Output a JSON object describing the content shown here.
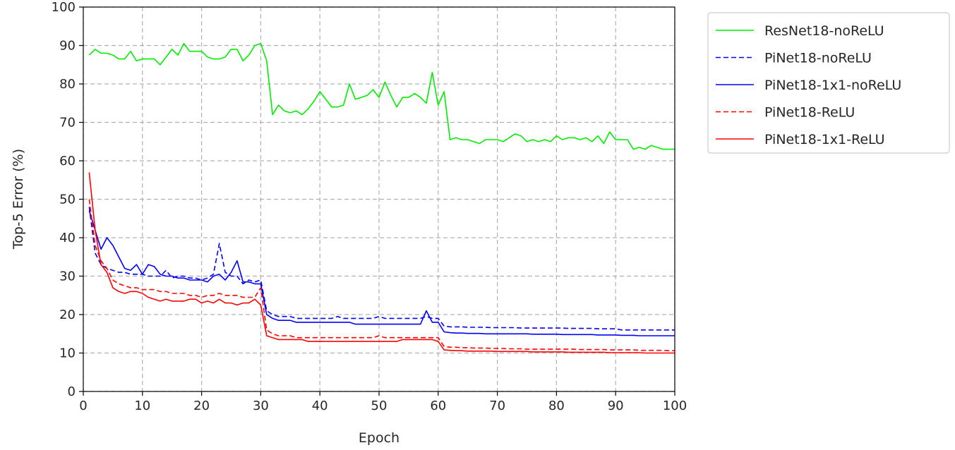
{
  "chart_data": {
    "type": "line",
    "title": "",
    "xlabel": "Epoch",
    "ylabel": "Top-5 Error (%)",
    "xlim": [
      0,
      100
    ],
    "ylim": [
      0,
      100
    ],
    "xticks": [
      "0",
      "10",
      "20",
      "30",
      "40",
      "50",
      "60",
      "70",
      "80",
      "90",
      "100"
    ],
    "yticks": [
      "0",
      "10",
      "20",
      "30",
      "40",
      "50",
      "60",
      "70",
      "80",
      "90",
      "100"
    ],
    "grid": true,
    "legend_position": "outside-top-right",
    "x": [
      1,
      2,
      3,
      4,
      5,
      6,
      7,
      8,
      9,
      10,
      11,
      12,
      13,
      14,
      15,
      16,
      17,
      18,
      19,
      20,
      21,
      22,
      23,
      24,
      25,
      26,
      27,
      28,
      29,
      30,
      31,
      32,
      33,
      34,
      35,
      36,
      37,
      38,
      39,
      40,
      41,
      42,
      43,
      44,
      45,
      46,
      47,
      48,
      49,
      50,
      51,
      52,
      53,
      54,
      55,
      56,
      57,
      58,
      59,
      60,
      61,
      62,
      63,
      64,
      65,
      66,
      67,
      68,
      69,
      70,
      71,
      72,
      73,
      74,
      75,
      76,
      77,
      78,
      79,
      80,
      81,
      82,
      83,
      84,
      85,
      86,
      87,
      88,
      89,
      90,
      91,
      92,
      93,
      94,
      95,
      96,
      97,
      98,
      99,
      100
    ],
    "series": [
      {
        "name": "ResNet18-noReLU",
        "color": "#00ee00",
        "style": "solid",
        "values": [
          87.5,
          89,
          88,
          88,
          87.5,
          86.5,
          86.5,
          88.5,
          86,
          86.5,
          86.5,
          86.5,
          85,
          87,
          89,
          87.5,
          90.5,
          88.5,
          88.5,
          88.5,
          87,
          86.5,
          86.5,
          87,
          89,
          89,
          86,
          87.5,
          90,
          90.5,
          86,
          72,
          74.5,
          73,
          72.5,
          73,
          72,
          73.5,
          75.5,
          78,
          76,
          74,
          74,
          74.5,
          80,
          76,
          76.5,
          77,
          78.5,
          76.5,
          80.5,
          77,
          74,
          76.5,
          76.5,
          77.5,
          76.5,
          75,
          83,
          74.5,
          78,
          65.5,
          66,
          65.5,
          65.5,
          65,
          64.5,
          65.5,
          65.5,
          65.5,
          65,
          66,
          67,
          66.5,
          65,
          65.5,
          65,
          65.5,
          65,
          66.5,
          65.5,
          66,
          66,
          65.5,
          66,
          65,
          66.5,
          64.5,
          67.5,
          65.5,
          65.5,
          65.5,
          63,
          63.5,
          63,
          64,
          63.5,
          63,
          63,
          63
        ]
      },
      {
        "name": "PiNet18-noReLU",
        "color": "#0000ff",
        "style": "dashed",
        "values": [
          48,
          36,
          33,
          32,
          31.5,
          31,
          31,
          30.5,
          30.5,
          30.5,
          30,
          30,
          30,
          31.5,
          29.5,
          30,
          30,
          29.5,
          29.5,
          29,
          29.5,
          30.5,
          38.5,
          31,
          30,
          30,
          28,
          29,
          28.5,
          29,
          21,
          20,
          19.5,
          19.5,
          19.5,
          19,
          19,
          19,
          19,
          19,
          19,
          19,
          19.5,
          19,
          19,
          19,
          19,
          19,
          19,
          19.5,
          19,
          19,
          19,
          19,
          19,
          19,
          19,
          19.5,
          19,
          19,
          17,
          16.8,
          16.8,
          16.8,
          16.7,
          16.7,
          16.7,
          16.7,
          16.6,
          16.6,
          16.6,
          16.6,
          16.6,
          16.5,
          16.5,
          16.5,
          16.5,
          16.5,
          16.5,
          16.5,
          16.5,
          16.4,
          16.4,
          16.4,
          16.4,
          16.4,
          16.3,
          16.3,
          16.3,
          16.3,
          16,
          16,
          16,
          16,
          16,
          16,
          16,
          16,
          16,
          16
        ]
      },
      {
        "name": "PiNet18-1x1-noReLU",
        "color": "#0000ff",
        "style": "solid",
        "values": [
          47,
          42,
          37,
          40,
          38,
          35,
          32,
          31.5,
          33,
          30.5,
          33,
          32.5,
          30.5,
          30,
          30,
          29.5,
          29.5,
          29,
          29,
          29,
          28.5,
          30,
          30.5,
          29,
          31,
          34,
          28.5,
          28.5,
          28,
          28,
          20,
          19,
          18.5,
          18.5,
          18.5,
          18,
          18,
          18,
          18,
          18,
          18,
          18,
          18,
          18,
          18,
          17.5,
          17.5,
          17.5,
          17.5,
          17.5,
          17.5,
          17.5,
          17.5,
          17.5,
          17.5,
          17.5,
          17.5,
          21,
          18,
          18,
          15.5,
          15.3,
          15.2,
          15.2,
          15.1,
          15.1,
          15.1,
          15,
          15,
          15,
          15,
          15,
          15,
          15,
          15,
          14.9,
          14.9,
          14.9,
          14.9,
          14.9,
          14.8,
          14.8,
          14.8,
          14.8,
          14.8,
          14.8,
          14.7,
          14.7,
          14.7,
          14.7,
          14.6,
          14.6,
          14.6,
          14.5,
          14.5,
          14.5,
          14.5,
          14.5,
          14.5,
          14.5
        ]
      },
      {
        "name": "PiNet18-ReLU",
        "color": "#ff0000",
        "style": "dashed",
        "values": [
          50,
          38,
          34,
          32,
          29,
          28,
          27.5,
          27,
          27,
          26.5,
          26.5,
          26.5,
          26,
          26,
          25.5,
          25.5,
          25.5,
          25,
          25,
          24.5,
          25,
          25,
          25.5,
          25,
          25,
          25,
          24.5,
          24.5,
          24.5,
          27,
          16,
          15,
          14.5,
          14.5,
          14.5,
          14,
          14,
          14,
          14,
          14,
          14,
          14,
          14,
          14,
          14,
          14,
          14,
          14,
          14,
          14.5,
          14,
          14,
          14,
          14,
          14,
          14,
          14,
          14,
          14,
          14,
          11.7,
          11.5,
          11.5,
          11.4,
          11.4,
          11.3,
          11.3,
          11.3,
          11.2,
          11.2,
          11.2,
          11.1,
          11.1,
          11.1,
          11,
          11,
          11,
          11,
          11,
          11,
          11,
          11,
          11,
          10.9,
          10.9,
          10.9,
          10.9,
          10.9,
          10.8,
          10.8,
          10.8,
          10.8,
          10.8,
          10.7,
          10.7,
          10.7,
          10.7,
          10.7,
          10.6,
          10.6
        ]
      },
      {
        "name": "PiNet18-1x1-ReLU",
        "color": "#ff0000",
        "style": "solid",
        "values": [
          57,
          42,
          33,
          31,
          27,
          26,
          25.5,
          26,
          26,
          25.5,
          24.5,
          24,
          23.5,
          24,
          23.5,
          23.5,
          23.5,
          24,
          24,
          23,
          23.5,
          23,
          24,
          23,
          23,
          22.5,
          23,
          23,
          24,
          22.5,
          14.5,
          14,
          13.5,
          13.5,
          13.5,
          13.5,
          13.5,
          13,
          13,
          13,
          13,
          13,
          13,
          13,
          13,
          13,
          13,
          13,
          13,
          13,
          13,
          13,
          13,
          13.5,
          13.5,
          13.5,
          13.5,
          13.5,
          13.5,
          13,
          10.8,
          10.7,
          10.6,
          10.6,
          10.5,
          10.5,
          10.5,
          10.5,
          10.5,
          10.4,
          10.4,
          10.4,
          10.4,
          10.4,
          10.4,
          10.3,
          10.3,
          10.3,
          10.3,
          10.3,
          10.3,
          10.2,
          10.2,
          10.2,
          10.2,
          10.2,
          10.2,
          10.2,
          10.1,
          10.1,
          10.1,
          10.1,
          10.1,
          10.1,
          10,
          10,
          10,
          10,
          10,
          10
        ]
      }
    ]
  }
}
